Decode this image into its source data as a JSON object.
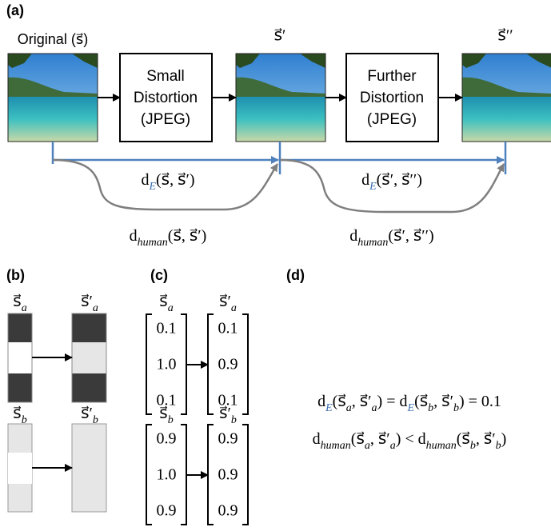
{
  "panel_a": {
    "label": "(a)",
    "images": [
      "Original (s⃗)",
      "s⃗′",
      "s⃗′′"
    ],
    "boxes": [
      [
        "Small",
        "Distortion",
        "(JPEG)"
      ],
      [
        "Further",
        "Distortion",
        "(JPEG)"
      ]
    ],
    "distances": [
      [
        {
          "text": "d"
        },
        {
          "text": "E",
          "sub": true,
          "color": "#3a6fb0"
        },
        {
          "text": "(s⃗, s⃗′)"
        }
      ],
      [
        {
          "text": "d"
        },
        {
          "text": "human",
          "sub": true
        },
        {
          "text": "(s⃗, s⃗′)"
        }
      ],
      [
        {
          "text": "d"
        },
        {
          "text": "E",
          "sub": true,
          "color": "#3a6fb0"
        },
        {
          "text": "(s⃗′, s⃗′′)"
        }
      ],
      [
        {
          "text": "d"
        },
        {
          "text": "human",
          "sub": true
        },
        {
          "text": "(s⃗′, s⃗′′)"
        }
      ]
    ]
  },
  "panel_b": {
    "label": "(b)",
    "vectors": [
      [
        {
          "text": "s⃗"
        },
        {
          "text": "a",
          "sub": true
        }
      ],
      [
        {
          "text": "s⃗′"
        },
        {
          "text": "a",
          "sub": true
        }
      ],
      [
        {
          "text": "s⃗"
        },
        {
          "text": "b",
          "sub": true
        }
      ],
      [
        {
          "text": "s⃗′"
        },
        {
          "text": "b",
          "sub": true
        }
      ]
    ]
  },
  "panel_c": {
    "label": "(c)",
    "vectors": [
      [
        {
          "text": "s⃗"
        },
        {
          "text": "a",
          "sub": true
        }
      ],
      [
        {
          "text": "s⃗′"
        },
        {
          "text": "a",
          "sub": true
        }
      ],
      [
        {
          "text": "s⃗"
        },
        {
          "text": "b",
          "sub": true
        }
      ],
      [
        {
          "text": "s⃗′"
        },
        {
          "text": "b",
          "sub": true
        }
      ]
    ],
    "matrices": [
      [
        "0.1",
        "1.0",
        "0.1"
      ],
      [
        "0.1",
        "0.9",
        "0.1"
      ],
      [
        "0.9",
        "1.0",
        "0.9"
      ],
      [
        "0.9",
        "0.9",
        "0.9"
      ]
    ]
  },
  "panel_d": {
    "label": "(d)",
    "equations": [
      [
        {
          "text": "d"
        },
        {
          "text": "E",
          "sub": true,
          "color": "#3a6fb0"
        },
        {
          "text": "(s⃗"
        },
        {
          "text": "a",
          "sub": true
        },
        {
          "text": ", s⃗′"
        },
        {
          "text": "a",
          "sub": true
        },
        {
          "text": ") = d"
        },
        {
          "text": "E",
          "sub": true,
          "color": "#3a6fb0"
        },
        {
          "text": "(s⃗"
        },
        {
          "text": "b",
          "sub": true
        },
        {
          "text": ", s⃗′"
        },
        {
          "text": "b",
          "sub": true
        },
        {
          "text": ") = 0.1"
        }
      ],
      [
        {
          "text": "d"
        },
        {
          "text": "human",
          "sub": true
        },
        {
          "text": "(s⃗"
        },
        {
          "text": "a",
          "sub": true
        },
        {
          "text": ", s⃗′"
        },
        {
          "text": "a",
          "sub": true
        },
        {
          "text": ")  <  d"
        },
        {
          "text": "human",
          "sub": true
        },
        {
          "text": "(s⃗"
        },
        {
          "text": "b",
          "sub": true
        },
        {
          "text": ", s⃗′"
        },
        {
          "text": "b",
          "sub": true
        },
        {
          "text": ")"
        }
      ]
    ]
  }
}
